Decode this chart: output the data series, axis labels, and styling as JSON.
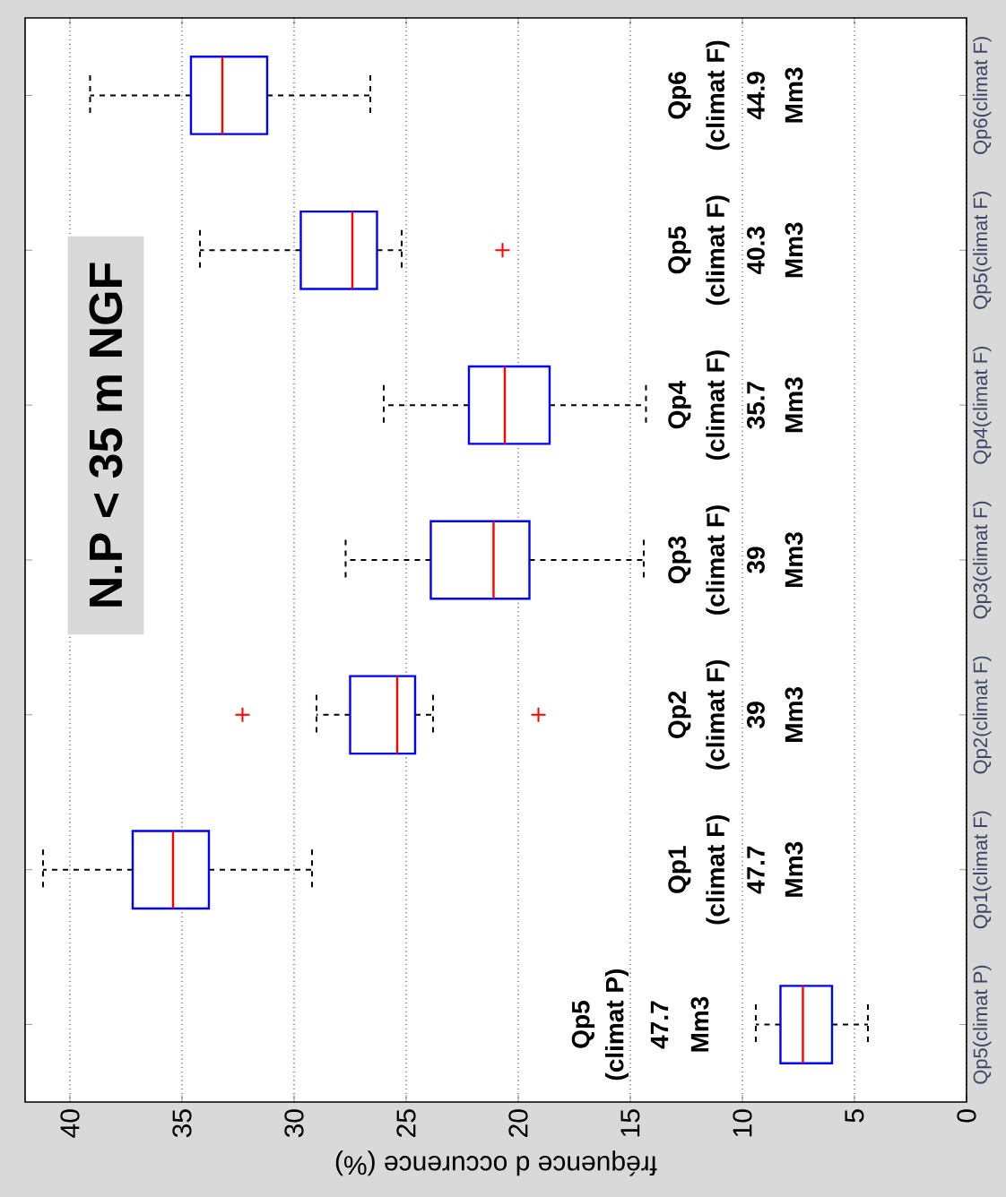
{
  "chart_data": {
    "type": "box",
    "orientation": "horizontal",
    "title": "N.P < 35 m NGF",
    "xlabel": "fréquence d occurence (%)",
    "categories": [
      "Qp6(climat F)",
      "Qp5(climat F)",
      "Qp4(climat F)",
      "Qp3(climat F)",
      "Qp2(climat F)",
      "Qp1(climat F)",
      "Qp5(climat P)"
    ],
    "series": [
      {
        "color": "#0000ff",
        "boxes": [
          {
            "low": 26.6,
            "q1": 31.2,
            "median": 33.2,
            "q3": 34.6,
            "high": 39.1
          },
          {
            "low": 25.2,
            "q1": 26.3,
            "median": 27.4,
            "q3": 29.7,
            "high": 34.2,
            "outliers": [
              20.7
            ]
          },
          {
            "low": 14.3,
            "q1": 18.6,
            "median": 20.6,
            "q3": 22.2,
            "high": 26.0
          },
          {
            "low": 14.4,
            "q1": 19.5,
            "median": 21.1,
            "q3": 23.9,
            "high": 27.7
          },
          {
            "low": 23.8,
            "q1": 24.6,
            "median": 25.4,
            "q3": 27.5,
            "high": 29.0,
            "outliers": [
              32.3,
              19.1
            ]
          },
          {
            "low": 29.2,
            "q1": 33.8,
            "median": 35.4,
            "q3": 37.2,
            "high": 41.2
          },
          {
            "low": 4.4,
            "q1": 6.0,
            "median": 7.3,
            "q3": 8.3,
            "high": 9.4
          }
        ]
      }
    ],
    "xlim": [
      42,
      0
    ],
    "xticks": [
      40,
      35,
      30,
      25,
      20,
      15,
      10,
      5,
      0
    ],
    "grid": "x",
    "annotations": [
      "Qp6",
      "(climat F)",
      "44.9",
      "Mm3",
      "Qp5",
      "(climat F)",
      "40.3",
      "Mm3",
      "Qp4",
      "(climat F)",
      "35.7",
      "Mm3",
      "Qp3",
      "(climat F)",
      "39",
      "Mm3",
      "Qp2",
      "(climat F)",
      "39",
      "Mm3",
      "Qp1",
      "(climat F)",
      "47.7",
      "Mm3",
      "Qp5",
      "(climat P)",
      "47.7",
      "Mm3"
    ]
  }
}
